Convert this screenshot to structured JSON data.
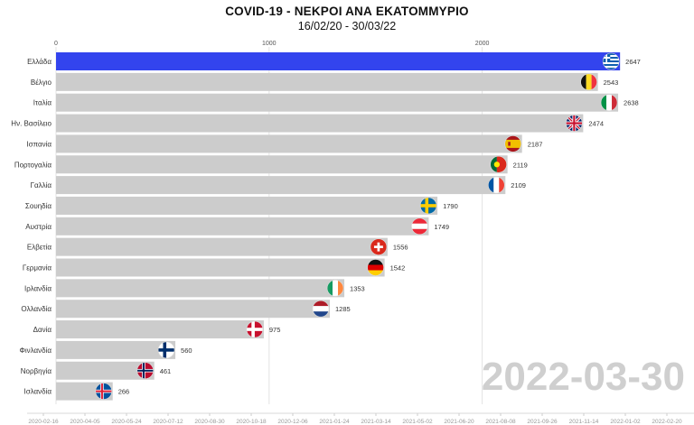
{
  "chart_data": {
    "type": "bar",
    "orientation": "horizontal",
    "title": "COVID-19 - ΝΕΚΡΟΙ ΑΝΑ ΕΚΑΤΟΜΜΥΡΙΟ",
    "subtitle": "16/02/20 - 30/03/22",
    "current_date": "2022-03-30",
    "xlim": [
      0,
      3000
    ],
    "x_ticks": [
      "0",
      "1000",
      "2000"
    ],
    "grid": true,
    "categories": [
      "Ελλάδα",
      "Βέλγιο",
      "Ιταλία",
      "Ην. Βασίλειο",
      "Ισπανία",
      "Πορτογαλία",
      "Γαλλία",
      "Σουηδία",
      "Αυστρία",
      "Ελβετία",
      "Γερμανία",
      "Ιρλανδία",
      "Ολλανδία",
      "Δανία",
      "Φινλανδία",
      "Νορβηγία",
      "Ισλανδία"
    ],
    "values": [
      2647,
      2543,
      2638,
      2474,
      2187,
      2119,
      2109,
      1790,
      1749,
      1556,
      1542,
      1353,
      1285,
      975,
      560,
      461,
      266
    ],
    "flags": [
      "greece-flag",
      "belgium-flag",
      "italy-flag",
      "uk-flag",
      "spain-flag",
      "portugal-flag",
      "france-flag",
      "sweden-flag",
      "austria-flag",
      "switzerland-flag",
      "germany-flag",
      "ireland-flag",
      "netherlands-flag",
      "denmark-flag",
      "finland-flag",
      "norway-flag",
      "iceland-flag"
    ],
    "highlight_color": "#3344ee",
    "bar_color": "#cccccc",
    "timeline_ticks": [
      "2020-02-16",
      "2020-04-05",
      "2020-05-24",
      "2020-07-12",
      "2020-08-30",
      "2020-10-18",
      "2020-12-06",
      "2021-01-24",
      "2021-03-14",
      "2021-05-02",
      "2021-06-20",
      "2021-08-08",
      "2021-09-26",
      "2021-11-14",
      "2022-01-02",
      "2022-02-20"
    ]
  }
}
